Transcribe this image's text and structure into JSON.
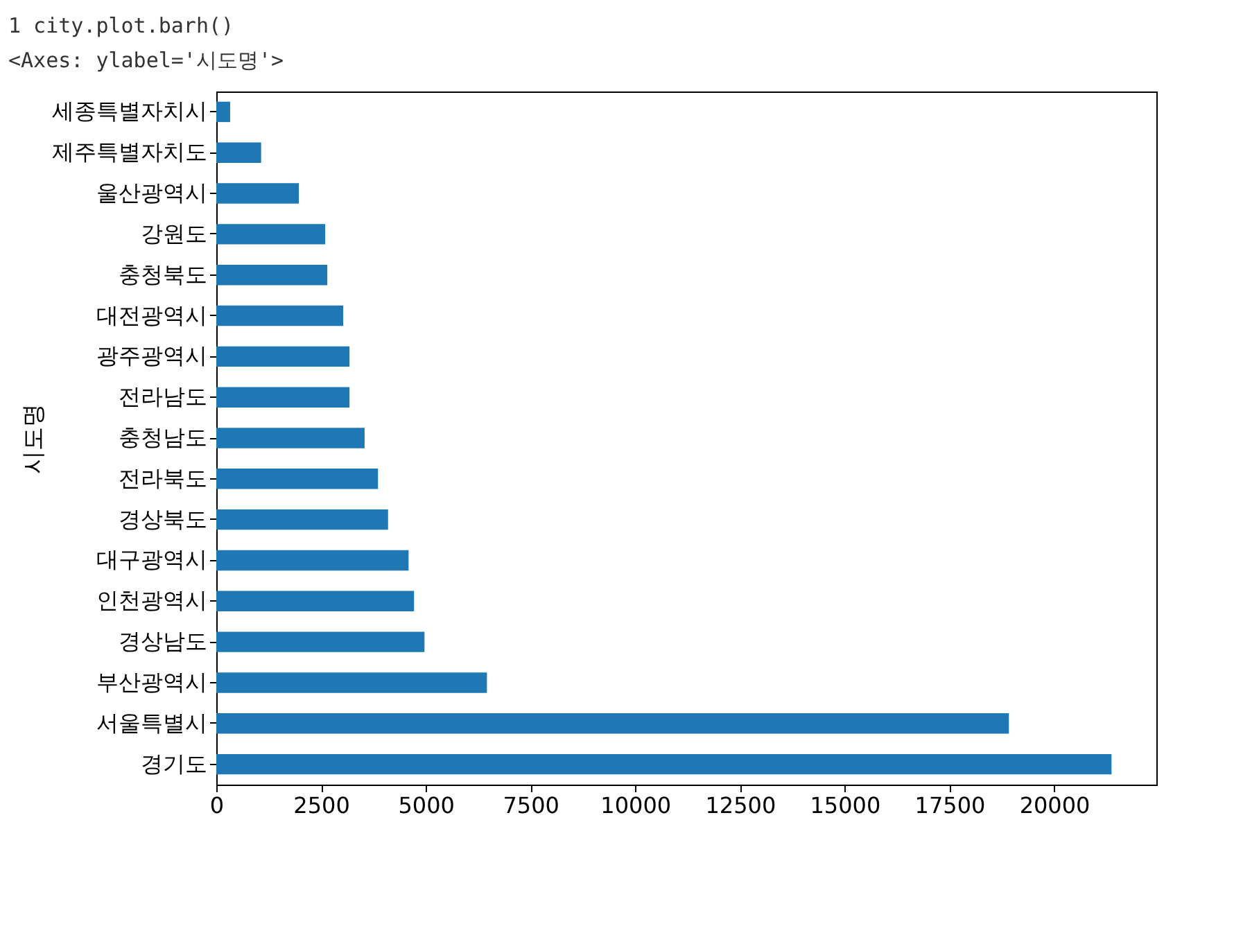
{
  "chart_data": {
    "type": "bar",
    "orientation": "horizontal",
    "ylabel": "시도명",
    "categories": [
      "세종특별자치시",
      "제주특별자치도",
      "울산광역시",
      "강원도",
      "충청북도",
      "대전광역시",
      "광주광역시",
      "전라남도",
      "충청남도",
      "전라북도",
      "경상북도",
      "대구광역시",
      "인천광역시",
      "경상남도",
      "부산광역시",
      "서울특별시",
      "경기도"
    ],
    "values": [
      330,
      1070,
      1970,
      2600,
      2650,
      3030,
      3180,
      3180,
      3540,
      3860,
      4100,
      4590,
      4720,
      4970,
      6460,
      18920,
      21370
    ],
    "color": "#1f77b4",
    "xlim": [
      0,
      22440
    ],
    "xticks": [
      0,
      2500,
      5000,
      7500,
      10000,
      12500,
      15000,
      17500,
      20000
    ],
    "grid": false,
    "annotations": [
      "1 city.plot.barh()",
      "<Axes: ylabel='시도명'>"
    ]
  }
}
